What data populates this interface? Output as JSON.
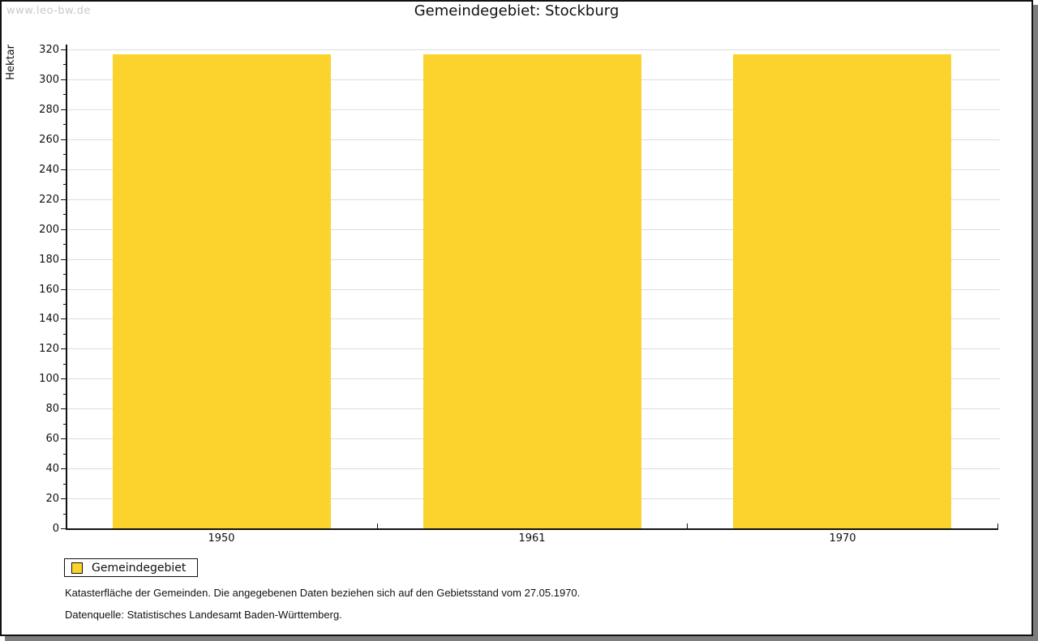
{
  "watermark": "www.leo-bw.de",
  "title": "Gemeindegebiet: Stockburg",
  "chart_data": {
    "type": "bar",
    "title": "Gemeindegebiet: Stockburg",
    "categories": [
      "1950",
      "1961",
      "1970"
    ],
    "series": [
      {
        "name": "Gemeindegebiet",
        "values": [
          317,
          317,
          317
        ]
      }
    ],
    "xlabel": "",
    "ylabel": "Hektar",
    "ylim": [
      0,
      320
    ],
    "ytick_step": 20,
    "yminor_step": 10,
    "grid": "horizontal-major",
    "legend_position": "bottom-left-outside",
    "bar_color": "#fcd32c"
  },
  "legend": {
    "items": [
      {
        "label": "Gemeindegebiet",
        "color": "#fcd32c"
      }
    ]
  },
  "footer": {
    "line1": "Katasterfläche der Gemeinden. Die angegebenen Daten beziehen sich auf den Gebietsstand vom 27.05.1970.",
    "line2": "Datenquelle: Statistisches Landesamt Baden-Württemberg."
  },
  "colors": {
    "bar": "#fcd32c",
    "grid": "#dcdcdc",
    "axis": "#111111",
    "watermark": "#c9c9c9",
    "frame_border": "#111111",
    "frame_shadow": "#7d7d7d",
    "background": "#ffffff"
  }
}
